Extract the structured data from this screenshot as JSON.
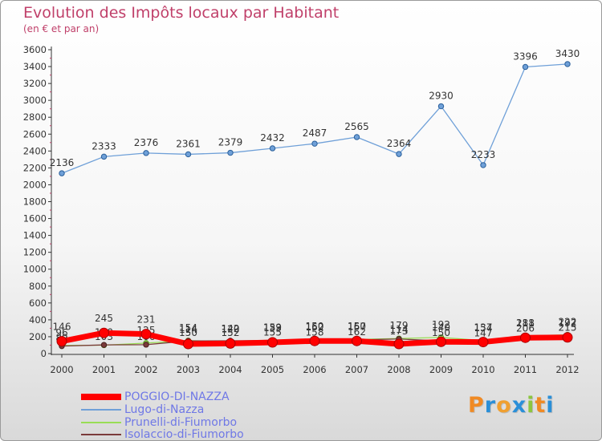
{
  "header": {
    "title": "Evolution des Impôts locaux par Habitant",
    "subtitle": "(en € et par an)"
  },
  "chart_data": {
    "type": "line",
    "title": "Evolution des Impôts locaux par Habitant",
    "subtitle": "(en € et par an)",
    "xlabel": "",
    "ylabel": "",
    "ylim": [
      0,
      3600
    ],
    "y_ticks": [
      0,
      200,
      400,
      600,
      800,
      1000,
      1200,
      1400,
      1600,
      1800,
      2000,
      2200,
      2400,
      2600,
      2800,
      3000,
      3200,
      3400,
      3600
    ],
    "categories": [
      "2000",
      "2001",
      "2002",
      "2003",
      "2004",
      "2005",
      "2006",
      "2007",
      "2008",
      "2009",
      "2010",
      "2011",
      "2012"
    ],
    "grid": false,
    "legend_position": "bottom-left",
    "series": [
      {
        "name": "POGGIO-DI-NAZZA",
        "color": "#ff0000",
        "values": [
          146,
          245,
          231,
          114,
          120,
          133,
          150,
          150,
          114,
          140,
          137,
          188,
          192
        ]
      },
      {
        "name": "Lugo-di-Nazza",
        "color": "#6fa0d8",
        "values": [
          2136,
          2333,
          2376,
          2361,
          2379,
          2432,
          2487,
          2565,
          2364,
          2930,
          2233,
          3396,
          3430
        ]
      },
      {
        "name": "Prunelli-di-Fiumorbo",
        "color": "#99dd55",
        "values": [
          96,
          100,
          125,
          154,
          142,
          159,
          162,
          167,
          179,
          192,
          154,
          211,
          222
        ]
      },
      {
        "name": "Isolaccio-di-Fiumorbo",
        "color": "#7a3a3a",
        "values": [
          89,
          103,
          106,
          150,
          152,
          155,
          158,
          162,
          173,
          150,
          147,
          206,
          215
        ]
      }
    ]
  },
  "logo": {
    "letters": [
      "P",
      "r",
      "o",
      "x",
      "i",
      "t",
      "i"
    ]
  }
}
